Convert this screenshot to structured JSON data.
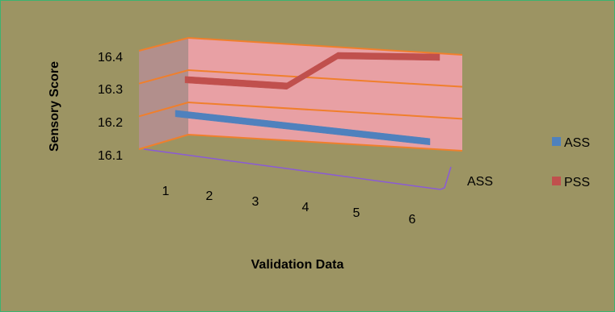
{
  "chart_data": {
    "type": "line",
    "view": "3d",
    "title": "",
    "xlabel": "Validation Data",
    "ylabel": "Sensory Score",
    "categories": [
      "1",
      "2",
      "3",
      "4",
      "5",
      "6"
    ],
    "depth_categories": [
      "ASS"
    ],
    "ylim": [
      16.1,
      16.4
    ],
    "yticks": [
      "16.1",
      "16.2",
      "16.3",
      "16.4"
    ],
    "grid": true,
    "legend_position": "right",
    "series": [
      {
        "name": "ASS",
        "color": "#4f81bd",
        "values": [
          16.2,
          16.2,
          16.2,
          16.2,
          16.2,
          16.2
        ]
      },
      {
        "name": "PSS",
        "color": "#c0504d",
        "values": [
          16.3,
          16.3,
          16.3,
          16.4,
          16.4,
          16.4
        ]
      }
    ],
    "colors": {
      "background": "#9c9463",
      "back_wall": "#e8a0a4",
      "side_wall": "#b28f8c",
      "gridline": "#f07f2c",
      "floor_edge": "#8a5ad6"
    }
  }
}
